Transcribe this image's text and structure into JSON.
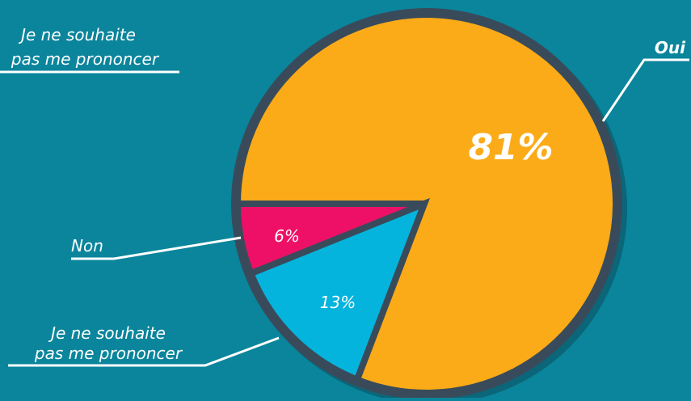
{
  "chart_data": {
    "type": "pie",
    "categories": [
      "Oui",
      "Non",
      "Je ne souhaite pas me prononcer"
    ],
    "values": [
      81,
      6,
      13
    ],
    "value_labels": [
      "81%",
      "6%",
      "13%"
    ],
    "legend": {
      "oui": "Oui",
      "non": "Non",
      "nsp_line1": "Je ne souhaite",
      "nsp_line2": "pas me prononcer"
    },
    "colors": {
      "Oui": "#fbab18",
      "Non": "#ee1067",
      "Je ne souhaite pas me prononcer": "#05b4dd",
      "background": "#0a859c",
      "outline": "#394b5a",
      "label_line": "#ffffff"
    }
  },
  "top_left_label": {
    "line1": "Je ne souhaite",
    "line2": "pas me prononcer"
  }
}
